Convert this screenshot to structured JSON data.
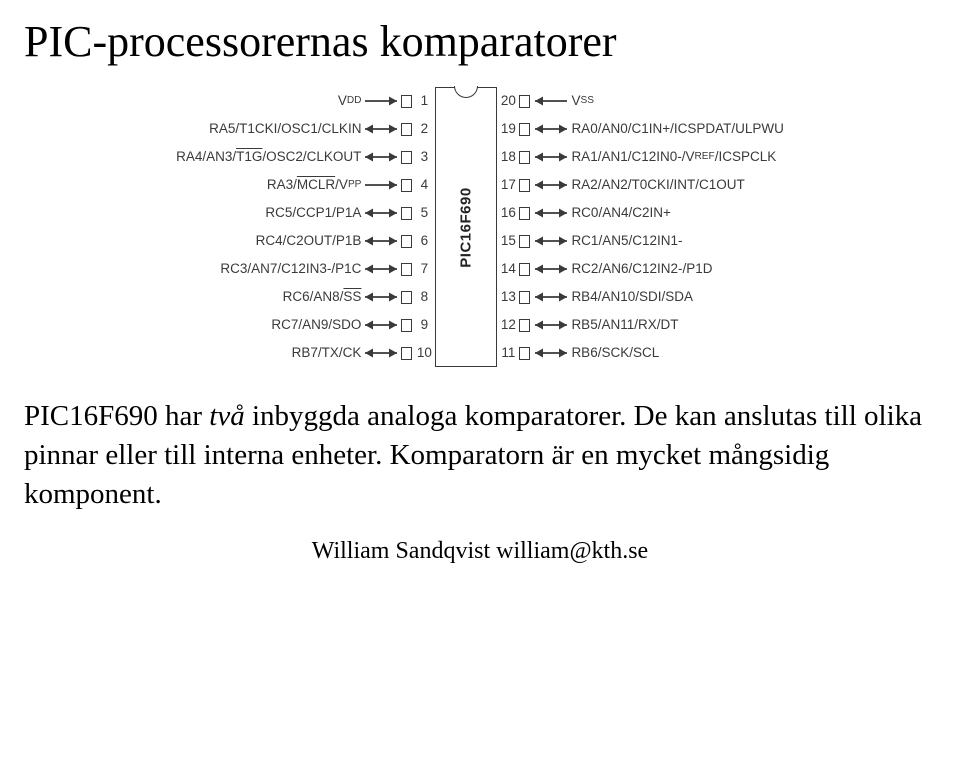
{
  "title": "PIC-processorernas komparatorer",
  "chip": {
    "name": "PIC16F690",
    "left_pins": [
      {
        "num": 1,
        "segments": [
          "V",
          {
            "sub": "DD"
          }
        ],
        "dir": "in"
      },
      {
        "num": 2,
        "segments": [
          "RA5/T1CKI/OSC1/CLKIN"
        ],
        "dir": "inout"
      },
      {
        "num": 3,
        "segments": [
          "RA4/AN3/",
          {
            "over": "T1G"
          },
          "/OSC2/CLKOUT"
        ],
        "dir": "inout"
      },
      {
        "num": 4,
        "segments": [
          "RA3/",
          {
            "over": "MCLR"
          },
          "/V",
          {
            "sub": "PP"
          }
        ],
        "dir": "in"
      },
      {
        "num": 5,
        "segments": [
          "RC5/CCP1/P1A"
        ],
        "dir": "inout"
      },
      {
        "num": 6,
        "segments": [
          "RC4/C2OUT/P1B"
        ],
        "dir": "inout"
      },
      {
        "num": 7,
        "segments": [
          "RC3/AN7/C12IN3-/P1C"
        ],
        "dir": "inout"
      },
      {
        "num": 8,
        "segments": [
          "RC6/AN8/",
          {
            "over": "SS"
          }
        ],
        "dir": "inout"
      },
      {
        "num": 9,
        "segments": [
          "RC7/AN9/SDO"
        ],
        "dir": "inout"
      },
      {
        "num": 10,
        "segments": [
          "RB7/TX/CK"
        ],
        "dir": "inout"
      }
    ],
    "right_pins": [
      {
        "num": 20,
        "segments": [
          "V",
          {
            "sub": "SS"
          }
        ],
        "dir": "in"
      },
      {
        "num": 19,
        "segments": [
          "RA0/AN0/C1IN+/ICSPDAT/ULPWU"
        ],
        "dir": "inout"
      },
      {
        "num": 18,
        "segments": [
          "RA1/AN1/C12IN0-/V",
          {
            "sub": "REF"
          },
          "/ICSPCLK"
        ],
        "dir": "inout"
      },
      {
        "num": 17,
        "segments": [
          "RA2/AN2/T0CKI/INT/C1OUT"
        ],
        "dir": "inout"
      },
      {
        "num": 16,
        "segments": [
          "RC0/AN4/C2IN+"
        ],
        "dir": "inout"
      },
      {
        "num": 15,
        "segments": [
          "RC1/AN5/C12IN1-"
        ],
        "dir": "inout"
      },
      {
        "num": 14,
        "segments": [
          "RC2/AN6/C12IN2-/P1D"
        ],
        "dir": "inout"
      },
      {
        "num": 13,
        "segments": [
          "RB4/AN10/SDI/SDA"
        ],
        "dir": "inout"
      },
      {
        "num": 12,
        "segments": [
          "RB5/AN11/RX/DT"
        ],
        "dir": "inout"
      },
      {
        "num": 11,
        "segments": [
          "RB6/SCK/SCL"
        ],
        "dir": "inout"
      }
    ],
    "colors": {
      "stroke": "#3a3a3a",
      "text": "#3a3a3a",
      "bg": "#ffffff"
    },
    "pin_row_height": 28,
    "label_fontsize": 13.5,
    "chip_name_fontsize": 15
  },
  "body": {
    "line1_pre": "PIC16F690 har ",
    "line1_em": "två",
    "line1_post": " inbyggda analoga komparatorer. De kan anslutas till olika pinnar eller till interna enheter. Komparatorn är en mycket mångsidig komponent.",
    "fontsize": 29
  },
  "footer": "William Sandqvist  william@kth.se"
}
